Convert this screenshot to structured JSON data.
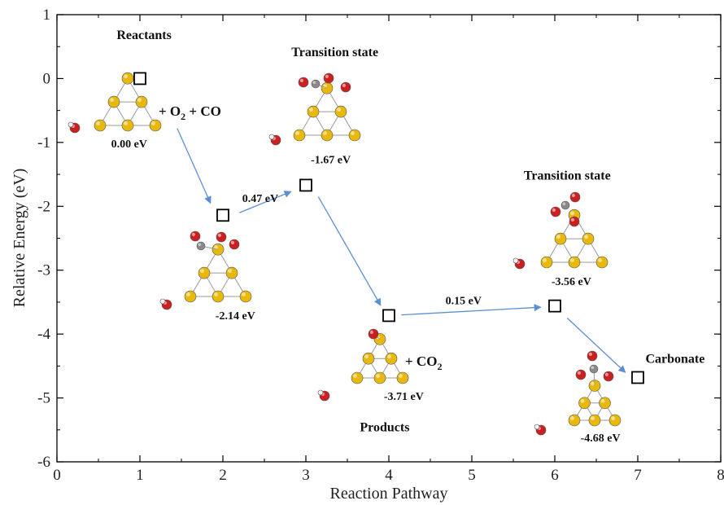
{
  "chart_data": {
    "type": "scatter",
    "title": "",
    "xlabel": "Reaction Pathway",
    "ylabel": "Relative Energy (eV)",
    "xlim": [
      0,
      8
    ],
    "ylim": [
      -6,
      1
    ],
    "xticks": [
      0,
      1,
      2,
      3,
      4,
      5,
      6,
      7,
      8
    ],
    "yticks": [
      1,
      0,
      -1,
      -2,
      -3,
      -4,
      -5,
      -6
    ],
    "grid": false,
    "marker": "open-square",
    "points": [
      {
        "x": 1,
        "y": 0.0
      },
      {
        "x": 2,
        "y": -2.14
      },
      {
        "x": 3,
        "y": -1.67
      },
      {
        "x": 4,
        "y": -3.71
      },
      {
        "x": 6,
        "y": -3.56
      },
      {
        "x": 7,
        "y": -4.68
      }
    ],
    "annotations": [
      {
        "text": "Reactants",
        "x": 1.05,
        "y": 0.62
      },
      {
        "text": "0.00 eV",
        "x": 0.87,
        "y": -1.08
      },
      {
        "text": "Transition state",
        "x": 3.35,
        "y": 0.35
      },
      {
        "text": "-1.67 eV",
        "x": 3.3,
        "y": -1.33
      },
      {
        "text": "0.47 eV",
        "x": 2.45,
        "y": -1.93
      },
      {
        "text": "-2.14 eV",
        "x": 2.15,
        "y": -3.77
      },
      {
        "text": "Products",
        "x": 3.95,
        "y": -5.52
      },
      {
        "text": "-3.71 eV",
        "x": 4.18,
        "y": -5.03
      },
      {
        "text": "0.15 eV",
        "x": 4.9,
        "y": -3.53
      },
      {
        "text": "Transition state",
        "x": 6.15,
        "y": -1.58
      },
      {
        "text": "-3.56 eV",
        "x": 6.2,
        "y": -3.23
      },
      {
        "text": "Carbonate",
        "x": 7.45,
        "y": -4.45
      },
      {
        "text": "-4.68 eV",
        "x": 6.55,
        "y": -5.68
      }
    ],
    "reagent_labels": {
      "o2_co": {
        "prefix": "+ O",
        "sub": "2",
        "suffix": " + CO"
      },
      "co2": {
        "prefix": "+ CO",
        "sub": "2"
      }
    },
    "arrows": [
      {
        "from": [
          1.45,
          -0.78
        ],
        "to": [
          1.85,
          -1.95
        ]
      },
      {
        "from": [
          2.2,
          -2.1
        ],
        "to": [
          2.82,
          -1.77
        ]
      },
      {
        "from": [
          3.15,
          -1.85
        ],
        "to": [
          3.9,
          -3.55
        ]
      },
      {
        "from": [
          4.15,
          -3.7
        ],
        "to": [
          5.83,
          -3.58
        ]
      },
      {
        "from": [
          6.15,
          -3.75
        ],
        "to": [
          6.85,
          -4.6
        ]
      }
    ],
    "colors": {
      "arrow": "#5b8fd4",
      "gold_atom": "#e8b80a",
      "oxygen_atom": "#cc1f1f",
      "carbon_atom": "#8a8a8a",
      "hydrogen_atom": "#f2f2f2",
      "bond": "#9a9a9a"
    }
  }
}
